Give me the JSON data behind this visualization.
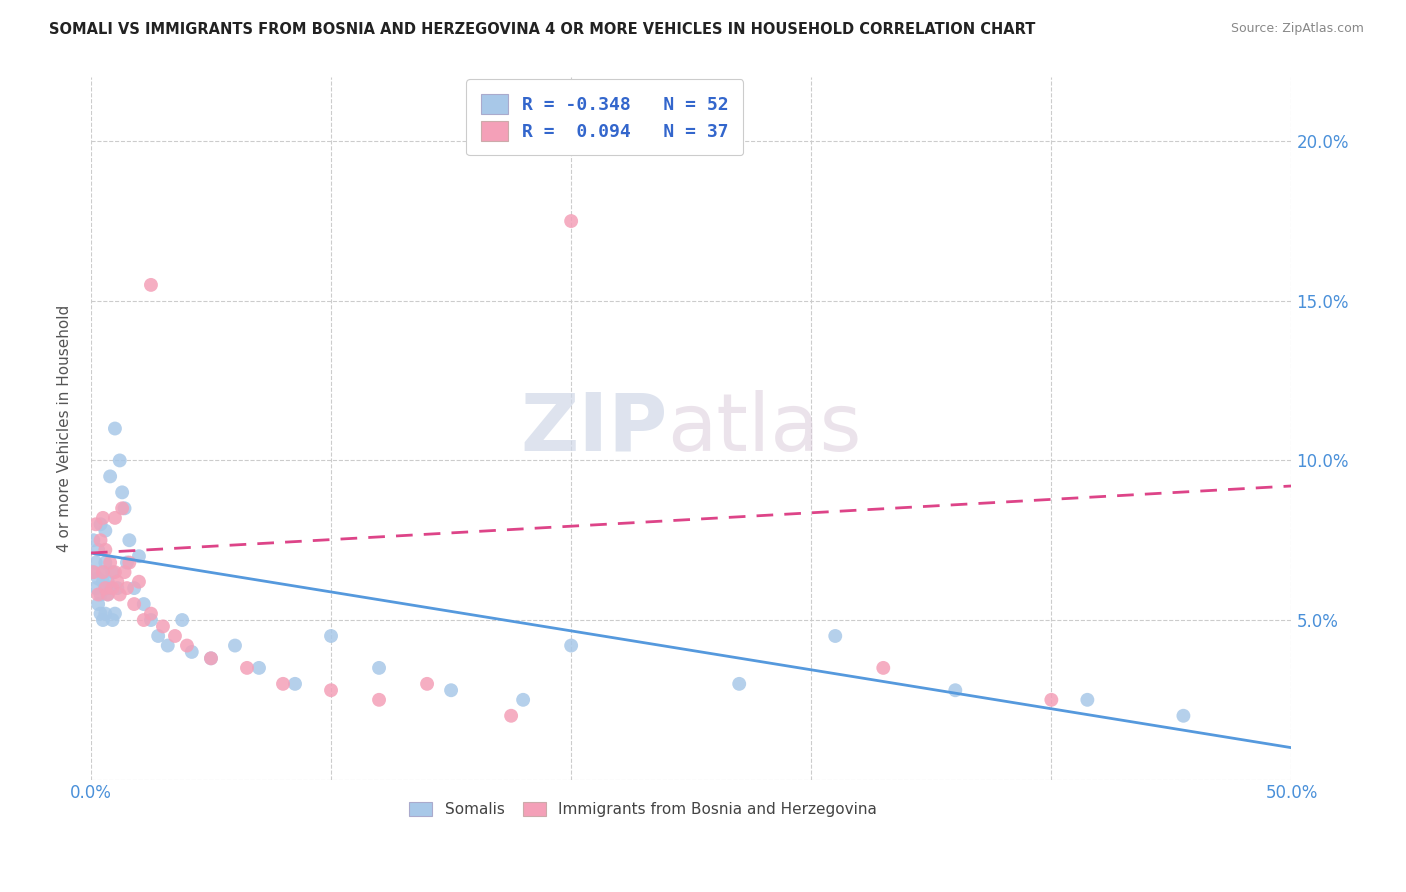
{
  "title": "SOMALI VS IMMIGRANTS FROM BOSNIA AND HERZEGOVINA 4 OR MORE VEHICLES IN HOUSEHOLD CORRELATION CHART",
  "source": "Source: ZipAtlas.com",
  "ylabel": "4 or more Vehicles in Household",
  "xlim": [
    0.0,
    0.5
  ],
  "ylim": [
    0.0,
    0.22
  ],
  "xticks": [
    0.0,
    0.1,
    0.2,
    0.3,
    0.4,
    0.5
  ],
  "xtick_labels": [
    "0.0%",
    "",
    "",
    "",
    "",
    "50.0%"
  ],
  "yticks": [
    0.0,
    0.05,
    0.1,
    0.15,
    0.2
  ],
  "right_ytick_labels": [
    "",
    "5.0%",
    "10.0%",
    "15.0%",
    "20.0%"
  ],
  "somali_color": "#a8c8e8",
  "bosnia_color": "#f4a0b8",
  "somali_line_color": "#5599dd",
  "bosnia_line_color": "#dd4488",
  "somali_label": "Somalis",
  "bosnia_label": "Immigrants from Bosnia and Herzegovina",
  "R_somali": -0.348,
  "N_somali": 52,
  "R_bosnia": 0.094,
  "N_bosnia": 37,
  "watermark_zip": "ZIP",
  "watermark_atlas": "atlas",
  "somali_x": [
    0.001,
    0.001,
    0.002,
    0.002,
    0.003,
    0.003,
    0.003,
    0.004,
    0.004,
    0.004,
    0.005,
    0.005,
    0.005,
    0.006,
    0.006,
    0.006,
    0.007,
    0.007,
    0.008,
    0.008,
    0.009,
    0.009,
    0.01,
    0.01,
    0.011,
    0.012,
    0.013,
    0.014,
    0.015,
    0.016,
    0.018,
    0.02,
    0.022,
    0.025,
    0.028,
    0.032,
    0.038,
    0.042,
    0.05,
    0.06,
    0.07,
    0.085,
    0.1,
    0.12,
    0.15,
    0.18,
    0.2,
    0.27,
    0.31,
    0.36,
    0.415,
    0.455
  ],
  "somali_y": [
    0.075,
    0.065,
    0.068,
    0.06,
    0.072,
    0.063,
    0.055,
    0.08,
    0.058,
    0.052,
    0.065,
    0.05,
    0.062,
    0.078,
    0.052,
    0.068,
    0.062,
    0.058,
    0.095,
    0.06,
    0.05,
    0.065,
    0.11,
    0.052,
    0.06,
    0.1,
    0.09,
    0.085,
    0.068,
    0.075,
    0.06,
    0.07,
    0.055,
    0.05,
    0.045,
    0.042,
    0.05,
    0.04,
    0.038,
    0.042,
    0.035,
    0.03,
    0.045,
    0.035,
    0.028,
    0.025,
    0.042,
    0.03,
    0.045,
    0.028,
    0.025,
    0.02
  ],
  "bosnia_x": [
    0.001,
    0.002,
    0.003,
    0.004,
    0.005,
    0.005,
    0.006,
    0.006,
    0.007,
    0.008,
    0.009,
    0.01,
    0.01,
    0.011,
    0.012,
    0.013,
    0.014,
    0.015,
    0.016,
    0.018,
    0.02,
    0.022,
    0.025,
    0.03,
    0.035,
    0.04,
    0.05,
    0.065,
    0.08,
    0.1,
    0.12,
    0.14,
    0.175,
    0.2,
    0.025,
    0.33,
    0.4
  ],
  "bosnia_y": [
    0.065,
    0.08,
    0.058,
    0.075,
    0.082,
    0.065,
    0.06,
    0.072,
    0.058,
    0.068,
    0.06,
    0.065,
    0.082,
    0.062,
    0.058,
    0.085,
    0.065,
    0.06,
    0.068,
    0.055,
    0.062,
    0.05,
    0.052,
    0.048,
    0.045,
    0.042,
    0.038,
    0.035,
    0.03,
    0.028,
    0.025,
    0.03,
    0.02,
    0.175,
    0.155,
    0.035,
    0.025
  ],
  "somali_line_x": [
    0.0,
    0.5
  ],
  "somali_line_y": [
    0.071,
    0.01
  ],
  "bosnia_line_x": [
    0.0,
    0.5
  ],
  "bosnia_line_y": [
    0.071,
    0.092
  ]
}
